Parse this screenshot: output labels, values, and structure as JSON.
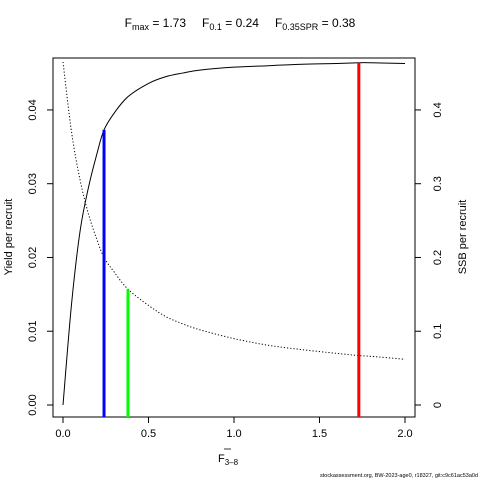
{
  "chart_data": {
    "type": "line",
    "title": {
      "fmax_label": "F",
      "fmax_sub": "max",
      "fmax_value": "1.73",
      "f01_label": "F",
      "f01_sub": "0.1",
      "f01_value": "0.24",
      "fspr_label": "F",
      "fspr_sub": "0.35SPR",
      "fspr_value": "0.38"
    },
    "xlabel": "F",
    "xlabel_sub": "3–8",
    "ylabel_left": "Yield per recruit",
    "ylabel_right": "SSB per recruit",
    "xlim": [
      0,
      2
    ],
    "ylim_left": [
      0,
      0.0465
    ],
    "ylim_right": [
      0,
      0.465
    ],
    "xticks": [
      0,
      0.5,
      1,
      1.5,
      2
    ],
    "xtick_labels": [
      "0.0",
      "0.5",
      "1.0",
      "1.5",
      "2.0"
    ],
    "yticks_left": [
      0,
      0.01,
      0.02,
      0.03,
      0.04
    ],
    "ytick_labels_left": [
      "0.00",
      "0.01",
      "0.02",
      "0.03",
      "0.04"
    ],
    "yticks_right": [
      0,
      0.1,
      0.2,
      0.3,
      0.4
    ],
    "ytick_labels_right": [
      "0",
      "0.1",
      "0.2",
      "0.3",
      "0.4"
    ],
    "series": [
      {
        "axis": "left",
        "style": "solid",
        "color": "#000000",
        "x": [
          0,
          0.05,
          0.1,
          0.15,
          0.2,
          0.24,
          0.3,
          0.38,
          0.5,
          0.6,
          0.7,
          0.8,
          1.0,
          1.2,
          1.4,
          1.6,
          1.73,
          1.8,
          2.0
        ],
        "y": [
          0,
          0.0137,
          0.0236,
          0.0296,
          0.0342,
          0.0373,
          0.0396,
          0.0418,
          0.0436,
          0.0445,
          0.045,
          0.0454,
          0.0458,
          0.046,
          0.0462,
          0.0463,
          0.0464,
          0.0464,
          0.0463
        ]
      },
      {
        "axis": "right",
        "style": "dotted",
        "color": "#000000",
        "x": [
          0,
          0.05,
          0.1,
          0.15,
          0.2,
          0.24,
          0.3,
          0.38,
          0.5,
          0.6,
          0.7,
          0.8,
          1.0,
          1.2,
          1.4,
          1.6,
          1.73,
          1.8,
          2.0
        ],
        "y": [
          0.465,
          0.37,
          0.305,
          0.258,
          0.223,
          0.2,
          0.18,
          0.157,
          0.135,
          0.12,
          0.11,
          0.102,
          0.09,
          0.081,
          0.075,
          0.07,
          0.067,
          0.066,
          0.062
        ]
      }
    ],
    "reference_lines": [
      {
        "name": "F0.1",
        "x": 0.24,
        "y_left": 0.0373,
        "color": "#0000ff"
      },
      {
        "name": "F0.35SPR",
        "x": 0.38,
        "y_right": 0.157,
        "color": "#00ff00"
      },
      {
        "name": "Fmax",
        "x": 1.73,
        "y_left": 0.0464,
        "color": "#ff0000"
      }
    ],
    "grid": false
  },
  "footer": "stockassessment.org, BW-2023-age0, r18327, git:c9c61ac53a0d"
}
